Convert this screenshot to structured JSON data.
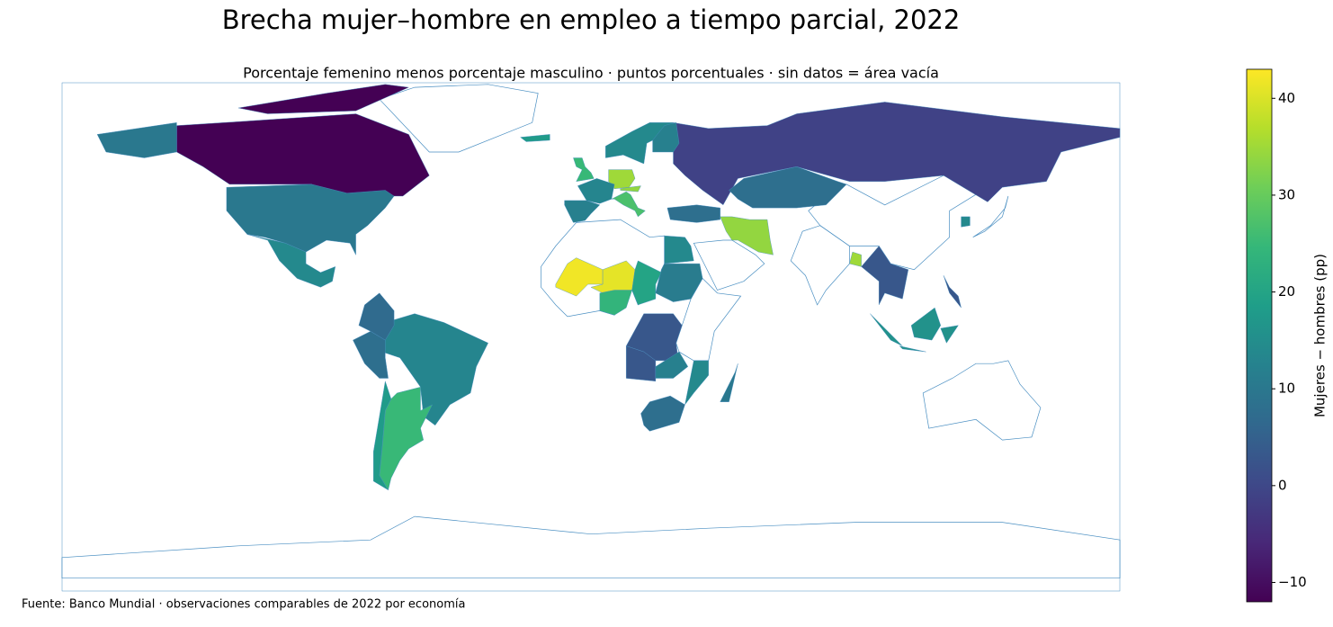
{
  "chart_data": {
    "type": "choropleth",
    "title": "Brecha mujer–hombre en empleo a tiempo parcial, 2022",
    "subtitle": "Porcentaje femenino menos porcentaje masculino · puntos porcentuales · sin datos = área vacía",
    "source": "Fuente: Banco Mundial · observaciones comparables de 2022 por economía",
    "colorbar_label": "Mujeres − hombres (pp)",
    "colormap": "viridis",
    "clim": [
      -12,
      43
    ],
    "cticks": [
      {
        "value": -10,
        "label": "−10"
      },
      0,
      10,
      20,
      30,
      40
    ],
    "values": [
      -12,
      10,
      14,
      13,
      25,
      18,
      8,
      7,
      -1,
      8,
      34,
      8,
      35,
      34,
      13,
      12,
      27,
      25,
      14,
      12,
      42,
      41,
      24,
      20,
      14,
      11,
      3,
      3,
      12,
      8,
      14,
      10,
      35,
      3,
      16,
      3,
      14,
      18
    ]
  }
}
